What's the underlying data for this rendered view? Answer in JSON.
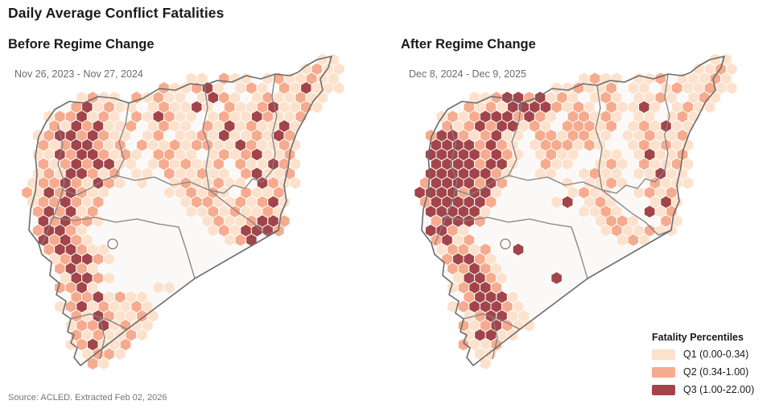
{
  "title": "Daily Average Conflict Fatalities",
  "source": "Source: ACLED. Extracted Feb 02, 2026",
  "chart_data": {
    "type": "heatmap",
    "subtype": "hexbin-choropleth-map-pair",
    "region": "Syria",
    "title": "Daily Average Conflict Fatalities",
    "legend_title": "Fatality Percentiles",
    "legend_position": "bottom-right",
    "bins": [
      {
        "label": "Q1 (0.00-0.34)",
        "range": [
          0.0,
          0.34
        ],
        "color": "#fce1cc"
      },
      {
        "label": "Q2 (0.34-1.00)",
        "range": [
          0.34,
          1.0
        ],
        "color": "#f6ab8e"
      },
      {
        "label": "Q3 (1.00-22.00)",
        "range": [
          1.0,
          22.0
        ],
        "color": "#a2454a"
      }
    ],
    "grid_encoding": {
      ".": "no data",
      "1": "Q1",
      "2": "Q2",
      "3": "Q3"
    },
    "map_style": {
      "land_fill": "#faf9f7",
      "outline_color": "#6b6b6b",
      "admin_line_color": "#828282",
      "hex_stroke": "#ffffff"
    },
    "panels": [
      {
        "heading": "Before Regime Change",
        "date_range": "Nov 26, 2023 - Nov 27, 2024",
        "hex_grid": [
          "............................11.",
          "..........................1211.",
          "................11.211.1211211.",
          ".............211231.121.213111.",
          "......1211.21211.1321.1211211..",
          ".....231211.121131.211231121...",
          "...1223121.213211.121132112....",
          "...21323112.1211.213121131.....",
          "..123323211.12.11213112132.....",
          "..21233212.211212211321121.....",
          "..1132332121.2211.12123112.....",
          "..212323311.1212112.211321.....",
          "..12133212.11.211211.23112.....",
          ".122321321.1..1211211.3211.....",
          ".21323211.....112121.2112......",
          ".1223212.......1221121231......",
          "..232312........112121121......",
          "..323221.........12112332......",
          "..23321...........1213332......",
          "..32321............123.........",
          "...233211......................",
          "...123321......................",
          "....2321.......................",
          "....13321......................",
          "....2231.....11................",
          ".....2231211...................",
          "....123121121..................",
          ".....21321121..................",
          ".....12231211..................",
          ".....2121121...................",
          ".....123112....................",
          "......1221.....................",
          ".......21......................"
        ]
      },
      {
        "heading": "After Regime Change",
        "date_range": "Dec 8, 2024 - Dec 9, 2025",
        "hex_grid": [
          "............................11.",
          "..........................1121.",
          "................1211.112.11121.",
          ".............112112.11.1211211.",
          "......1123323121.121.1121.121..",
          ".....212133332121.21131.1211...",
          "...12123332321.22121.11.121....",
          "...2123233121.22212.121311.....",
          "..233212311.2212211.112112.....",
          "..33332321.1222121..121211.....",
          "..333332321.1211..11.13112.....",
          "..33332331..211..121.21121.....",
          "..33333321..11..1211.11311.....",
          ".23333232.....1.1121..2111.....",
          ".33332331......1211..1212......",
          ".2333332.....13.121...131......",
          "..333331........1121..312......",
          "..23332..........1221..21......",
          "..3321............1211211......",
          "..2312.............121.........",
          "...12212..3....................",
          "...23321.......................",
          "....22321......................",
          "....13321....3.................",
          "....12332......................",
          ".....23331.....................",
          "....1233321....................",
          ".....123311....................",
          ".....2123211...................",
          ".....13311.....................",
          ".....2112......................",
          "......11.......................",
          ".......1......................."
        ]
      }
    ]
  }
}
